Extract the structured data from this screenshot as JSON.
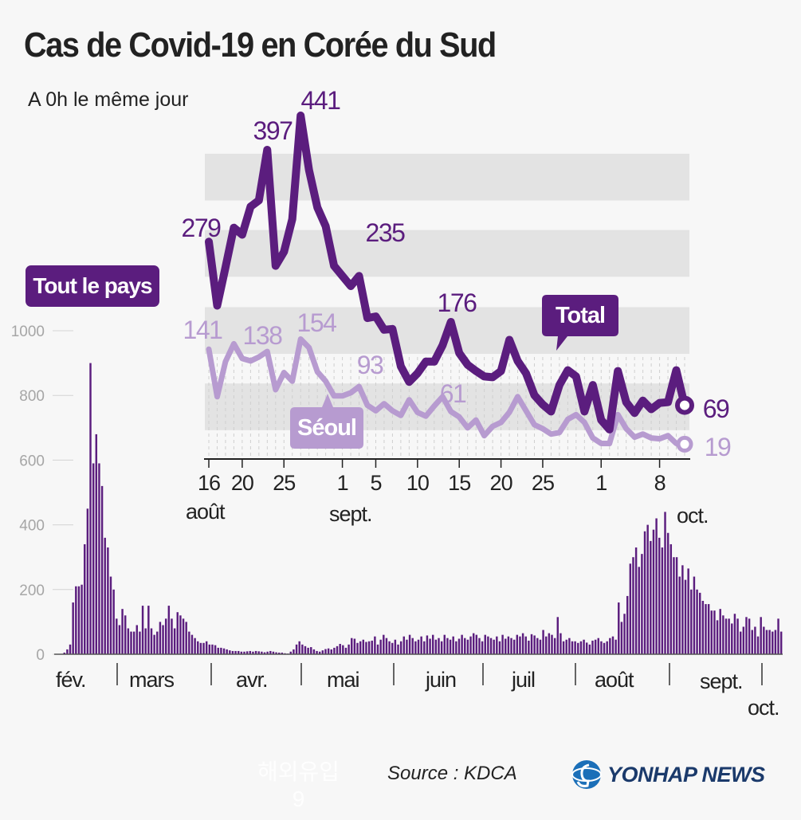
{
  "title": "Cas de Covid-19 en Corée du Sud",
  "subtitle": "A 0h le même jour",
  "badge": "Tout le pays",
  "source": "Source : KDCA",
  "brand": "YONHAP NEWS",
  "ghost": {
    "line1": "해외유입",
    "line2": "9"
  },
  "colors": {
    "total": "#5b1d7e",
    "seoul": "#b79bd0",
    "band": "#e3e3e3",
    "bar": "#5b1d7e"
  },
  "chart_data": [
    {
      "type": "bar",
      "title": "Tout le pays",
      "ylim": [
        0,
        1000
      ],
      "y_ticks": [
        "0",
        "200",
        "400",
        "600",
        "800",
        "1000"
      ],
      "month_labels": [
        "fév.",
        "mars",
        "avr.",
        "mai",
        "juin",
        "juil",
        "août",
        "sept.",
        "oct."
      ],
      "values": [
        0,
        0,
        0,
        5,
        15,
        30,
        160,
        210,
        210,
        215,
        340,
        450,
        900,
        590,
        680,
        590,
        520,
        360,
        330,
        240,
        200,
        110,
        90,
        140,
        120,
        80,
        70,
        70,
        90,
        70,
        150,
        80,
        150,
        80,
        60,
        70,
        100,
        90,
        110,
        150,
        110,
        80,
        130,
        120,
        110,
        100,
        70,
        60,
        50,
        40,
        35,
        35,
        40,
        30,
        30,
        28,
        20,
        20,
        18,
        15,
        12,
        10,
        10,
        10,
        8,
        8,
        9,
        10,
        8,
        10,
        9,
        8,
        6,
        8,
        10,
        8,
        6,
        5,
        5,
        3,
        2,
        8,
        15,
        30,
        40,
        30,
        25,
        20,
        22,
        15,
        10,
        8,
        12,
        16,
        18,
        15,
        20,
        25,
        32,
        28,
        20,
        30,
        50,
        48,
        35,
        40,
        45,
        38,
        40,
        42,
        55,
        30,
        45,
        60,
        50,
        40,
        35,
        45,
        30,
        40,
        55,
        45,
        60,
        50,
        40,
        45,
        55,
        40,
        58,
        48,
        60,
        45,
        50,
        40,
        60,
        50,
        45,
        55,
        40,
        48,
        60,
        50,
        45,
        55,
        65,
        60,
        50,
        40,
        60,
        55,
        50,
        45,
        55,
        40,
        60,
        48,
        55,
        50,
        45,
        60,
        55,
        65,
        55,
        42,
        62,
        58,
        50,
        45,
        75,
        55,
        65,
        60,
        50,
        115,
        65,
        40,
        45,
        50,
        40,
        40,
        35,
        40,
        45,
        36,
        30,
        42,
        45,
        50,
        40,
        35,
        40,
        50,
        55,
        45,
        160,
        100,
        125,
        180,
        280,
        300,
        330,
        270,
        310,
        380,
        400,
        350,
        385,
        420,
        360,
        330,
        440,
        375,
        340,
        300,
        300,
        240,
        275,
        230,
        265,
        200,
        240,
        200,
        190,
        165,
        155,
        155,
        135,
        135,
        105,
        140,
        120,
        110,
        110,
        95,
        125,
        110,
        70,
        85,
        115,
        110,
        75,
        85,
        55,
        115,
        85,
        75,
        75,
        70,
        75,
        110,
        70
      ]
    },
    {
      "type": "line",
      "title": "Total / Séoul",
      "x_ticks": [
        "16",
        "20",
        "25",
        "1",
        "5",
        "10",
        "15",
        "20",
        "25",
        "1",
        "8"
      ],
      "x_month_labels": [
        "août",
        "sept.",
        "oct."
      ],
      "series": [
        {
          "name": "Total",
          "values": [
            279,
            197,
            246,
            297,
            288,
            324,
            332,
            397,
            248,
            266,
            308,
            441,
            371,
            323,
            299,
            248,
            235,
            222,
            235,
            181,
            183,
            166,
            167,
            119,
            99,
            110,
            125,
            125,
            146,
            176,
            136,
            121,
            113,
            106,
            105,
            113,
            153,
            126,
            110,
            82,
            70,
            61,
            95,
            114,
            106,
            61,
            95,
            50,
            38,
            113,
            73,
            59,
            75,
            64,
            72,
            73,
            114,
            69
          ],
          "labels": {
            "first": "279",
            "peak1": "397",
            "peak2": "441",
            "mid": "235",
            "sep10": "176",
            "last": "69"
          },
          "legend": "Total"
        },
        {
          "name": "Séoul",
          "values": [
            141,
            80,
            125,
            148,
            129,
            126,
            131,
            138,
            89,
            111,
            100,
            154,
            143,
            112,
            100,
            81,
            81,
            85,
            93,
            69,
            62,
            71,
            62,
            56,
            76,
            60,
            55,
            68,
            80,
            61,
            54,
            40,
            50,
            30,
            42,
            47,
            60,
            80,
            62,
            44,
            39,
            32,
            34,
            51,
            57,
            47,
            27,
            20,
            20,
            57,
            39,
            28,
            32,
            27,
            26,
            30,
            20,
            19
          ],
          "labels": {
            "first": "141",
            "c2": "138",
            "c3": "154",
            "c4": "93",
            "c5": "61",
            "last": "19"
          },
          "legend": "Séoul"
        }
      ]
    }
  ]
}
